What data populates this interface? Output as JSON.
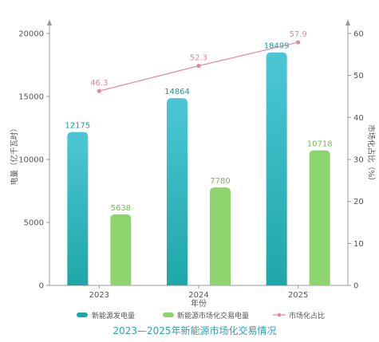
{
  "chart_data": {
    "type": "bar",
    "title": "2023—2025年新能源市场化交易情况",
    "xlabel": "年份",
    "ylabel": "电量（亿千瓦时）",
    "y2label": "市场化占比（%）",
    "categories": [
      "2023",
      "2024",
      "2025"
    ],
    "ylim": [
      0,
      20000
    ],
    "y_ticks": [
      "0",
      "5000",
      "10000",
      "15000",
      "20000"
    ],
    "y2lim": [
      0,
      60
    ],
    "y2_ticks": [
      "0",
      "10",
      "20",
      "30",
      "40",
      "50",
      "60"
    ],
    "series": [
      {
        "name": "新能源发电量",
        "type": "bar",
        "axis": "left",
        "values": [
          12175,
          14864,
          18499
        ],
        "labels": [
          "12175",
          "14864",
          "18499"
        ]
      },
      {
        "name": "新能源市场化交易电量",
        "type": "bar",
        "axis": "left",
        "values": [
          5638,
          7780,
          10718
        ],
        "labels": [
          "5638",
          "7780",
          "10718"
        ]
      },
      {
        "name": "市场化占比",
        "type": "line",
        "axis": "right",
        "values": [
          46.3,
          52.3,
          57.9
        ],
        "labels": [
          "46.3",
          "52.3",
          "57.9"
        ]
      }
    ],
    "colors": {
      "bar1_top": "#4cc6d6",
      "bar1_bottom": "#1ea7a8",
      "bar1_label": "#1c9aa3",
      "bar2": "#8dd46f",
      "bar2_label": "#6cbf4a",
      "line": "#e0899a",
      "axis": "#9a9a9a",
      "title": "#2aa3b0",
      "text": "#555555"
    },
    "legend_position": "bottom",
    "grid": false
  }
}
